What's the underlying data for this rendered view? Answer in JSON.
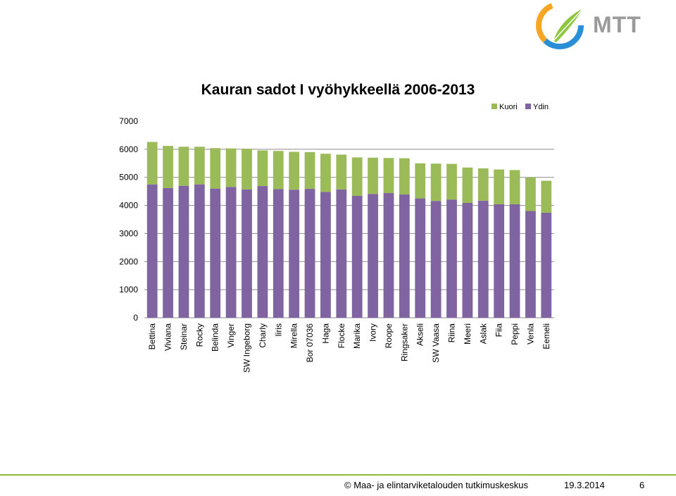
{
  "logo": {
    "text": "MTT"
  },
  "chart_data": {
    "type": "bar",
    "stacked": true,
    "title": "Kauran sadot I vyöhykkeellä 2006-2013",
    "xlabel": "",
    "ylabel": "",
    "ylim": [
      0,
      7000
    ],
    "yticks": [
      0,
      1000,
      2000,
      3000,
      4000,
      5000,
      6000,
      7000
    ],
    "grid": true,
    "legend_position": "top-right",
    "categories": [
      "Bettina",
      "Viviana",
      "Steinar",
      "Rocky",
      "Belinda",
      "Vinger",
      "SW Ingeborg",
      "Charly",
      "Iiris",
      "Mirella",
      "Bor 07036",
      "Haga",
      "Flocke",
      "Marika",
      "Ivory",
      "Roope",
      "Ringsaker",
      "Akseli",
      "SW Vaasa",
      "Riina",
      "Meeri",
      "Aslak",
      "Fiia",
      "Peppi",
      "Venla",
      "Eemeli"
    ],
    "series": [
      {
        "name": "Ydin",
        "color": "#8064a2",
        "values": [
          4750,
          4620,
          4700,
          4750,
          4600,
          4660,
          4570,
          4690,
          4580,
          4560,
          4590,
          4480,
          4570,
          4340,
          4410,
          4440,
          4390,
          4250,
          4160,
          4210,
          4090,
          4170,
          4040,
          4040,
          3800,
          3740
        ]
      },
      {
        "name": "Kuori",
        "color": "#9bbb59",
        "values": [
          1510,
          1500,
          1390,
          1340,
          1440,
          1370,
          1450,
          1270,
          1360,
          1350,
          1310,
          1360,
          1240,
          1370,
          1290,
          1250,
          1290,
          1250,
          1330,
          1270,
          1260,
          1150,
          1240,
          1220,
          1200,
          1140
        ]
      }
    ],
    "legend": [
      {
        "name": "Kuori",
        "color": "#9bbb59"
      },
      {
        "name": "Ydin",
        "color": "#8064a2"
      }
    ]
  },
  "footer": {
    "copyright": "© Maa- ja elintarviketalouden tutkimuskeskus",
    "date": "19.3.2014",
    "page": "6"
  }
}
